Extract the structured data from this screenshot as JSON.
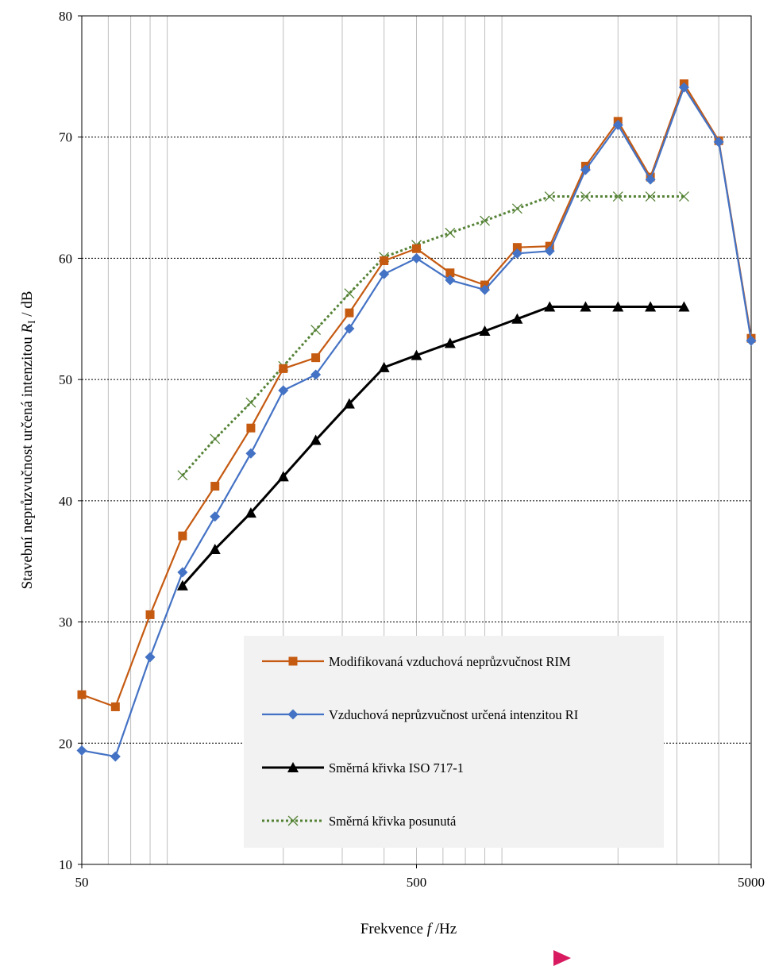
{
  "chart_data": {
    "type": "line",
    "xscale": "log",
    "xlim": [
      50,
      5000
    ],
    "ylim": [
      10,
      80
    ],
    "grid": true,
    "legend_position": "bottom-center",
    "x_ticks": [
      "50",
      "500",
      "5000"
    ],
    "y_ticks": [
      "10",
      "20",
      "30",
      "40",
      "50",
      "60",
      "70",
      "80"
    ],
    "xlabel": {
      "main": "Frekvence ",
      "var": "f",
      "unit": " /Hz"
    },
    "ylabel": {
      "main": "Stavební neprůzvučnost určená intenzitou ",
      "var": "R",
      "sub": "I",
      "unit": " / dB"
    },
    "series": [
      {
        "name": "Modifikovaná vzduchová neprůzvučnost RIM",
        "color": "#c55a11",
        "marker": "square",
        "line": "solid",
        "x": [
          50,
          63,
          80,
          100,
          125,
          160,
          200,
          250,
          315,
          400,
          500,
          630,
          800,
          1000,
          1250,
          1600,
          2000,
          2500,
          3150,
          4000,
          5000
        ],
        "y": [
          24.0,
          23.0,
          30.6,
          37.1,
          41.2,
          46.0,
          50.9,
          51.8,
          55.5,
          59.8,
          60.8,
          58.8,
          57.8,
          60.9,
          61.0,
          67.6,
          71.3,
          66.7,
          74.4,
          69.7,
          53.4
        ]
      },
      {
        "name": "Vzduchová neprůzvučnost určená intenzitou RI",
        "color": "#4472c4",
        "marker": "diamond",
        "line": "solid",
        "x": [
          50,
          63,
          80,
          100,
          125,
          160,
          200,
          250,
          315,
          400,
          500,
          630,
          800,
          1000,
          1250,
          1600,
          2000,
          2500,
          3150,
          4000,
          5000
        ],
        "y": [
          19.4,
          18.9,
          27.1,
          34.1,
          38.7,
          43.9,
          49.1,
          50.4,
          54.2,
          58.7,
          60.0,
          58.2,
          57.4,
          60.4,
          60.6,
          67.3,
          71.0,
          66.5,
          74.1,
          69.6,
          53.2
        ]
      },
      {
        "name": "Směrná křivka ISO 717-1",
        "color": "#000000",
        "marker": "triangle",
        "line": "solid",
        "x": [
          100,
          125,
          160,
          200,
          250,
          315,
          400,
          500,
          630,
          800,
          1000,
          1250,
          1600,
          2000,
          2500,
          3150
        ],
        "y": [
          33,
          36,
          39,
          42,
          45,
          48,
          51,
          52,
          53,
          54,
          55,
          56,
          56,
          56,
          56,
          56
        ]
      },
      {
        "name": "Směrná křivka posunutá",
        "color": "#548235",
        "marker": "x",
        "line": "dotted",
        "x": [
          100,
          125,
          160,
          200,
          250,
          315,
          400,
          500,
          630,
          800,
          1000,
          1250,
          1600,
          2000,
          2500,
          3150
        ],
        "y": [
          42.1,
          45.1,
          48.1,
          51.1,
          54.1,
          57.1,
          60.1,
          61.1,
          62.1,
          63.1,
          64.1,
          65.1,
          65.1,
          65.1,
          65.1,
          65.1
        ]
      }
    ]
  }
}
